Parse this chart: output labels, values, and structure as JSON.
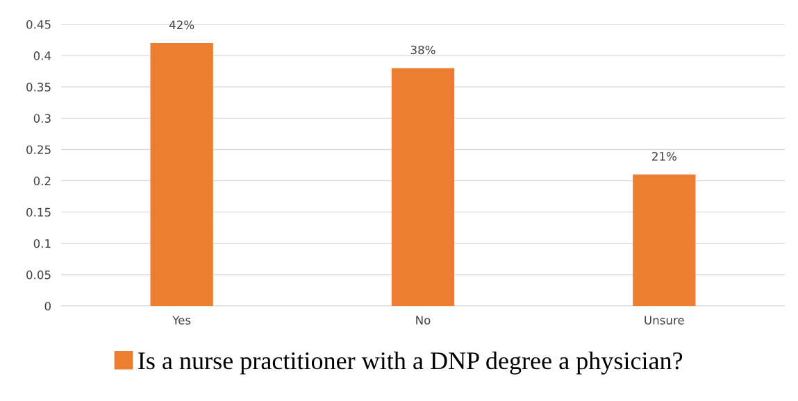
{
  "chart_data": {
    "type": "bar",
    "categories": [
      "Yes",
      "No",
      "Unsure"
    ],
    "series": [
      {
        "name": "Is a nurse practitioner with a DNP degree a physician?",
        "color": "#ed7d31",
        "values": [
          0.42,
          0.38,
          0.21
        ],
        "value_labels": [
          "42%",
          "38%",
          "21%"
        ]
      }
    ],
    "ylim": [
      0,
      0.45
    ],
    "yticks": [
      0,
      0.05,
      0.1,
      0.15,
      0.2,
      0.25,
      0.3,
      0.35,
      0.4,
      0.45
    ],
    "grid": "y",
    "legend": "bottom"
  }
}
